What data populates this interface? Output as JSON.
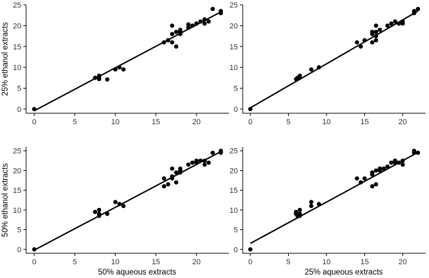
{
  "chart_data": [
    {
      "type": "scatter",
      "xlabel": "",
      "ylabel": "25% ethanol extracts",
      "xlim": [
        -1,
        24
      ],
      "ylim": [
        -1,
        25
      ],
      "xticks": [
        "0",
        "5",
        "10",
        "15",
        "20"
      ],
      "yticks": [
        "0",
        "5",
        "10",
        "15",
        "20",
        "25"
      ],
      "fit": {
        "x": [
          0,
          23
        ],
        "y": [
          -0.4,
          23.3
        ]
      },
      "points": [
        [
          0,
          0
        ],
        [
          7.5,
          7.5
        ],
        [
          8,
          7.7
        ],
        [
          8,
          8
        ],
        [
          8,
          7.2
        ],
        [
          9,
          7.1
        ],
        [
          10,
          9.5
        ],
        [
          10.5,
          10
        ],
        [
          11,
          9.5
        ],
        [
          16,
          16
        ],
        [
          16.5,
          16.5
        ],
        [
          17,
          20
        ],
        [
          17,
          18
        ],
        [
          17,
          16
        ],
        [
          17.5,
          15
        ],
        [
          17.5,
          18.5
        ],
        [
          18,
          19
        ],
        [
          18,
          18
        ],
        [
          18,
          18.5
        ],
        [
          19,
          20.3
        ],
        [
          19,
          19.5
        ],
        [
          19.5,
          20
        ],
        [
          20,
          20.5
        ],
        [
          20,
          20.5
        ],
        [
          20.5,
          21
        ],
        [
          21,
          21.5
        ],
        [
          21,
          20.5
        ],
        [
          21.5,
          21
        ],
        [
          22,
          24
        ],
        [
          23,
          23
        ],
        [
          23,
          23.5
        ]
      ]
    },
    {
      "type": "scatter",
      "xlabel": "",
      "ylabel": "",
      "xlim": [
        -1,
        23
      ],
      "ylim": [
        -1,
        25
      ],
      "xticks": [
        "0",
        "5",
        "10",
        "15",
        "20"
      ],
      "yticks": [
        "0",
        "5",
        "10",
        "15",
        "20",
        "25"
      ],
      "fit": {
        "x": [
          0,
          22
        ],
        "y": [
          0.3,
          23.5
        ]
      },
      "points": [
        [
          0,
          0
        ],
        [
          6,
          7.2
        ],
        [
          6.2,
          7.5
        ],
        [
          6.5,
          8
        ],
        [
          6.5,
          7.5
        ],
        [
          8,
          9.5
        ],
        [
          9,
          10
        ],
        [
          14,
          16
        ],
        [
          14.5,
          15
        ],
        [
          15,
          16.5
        ],
        [
          16,
          16
        ],
        [
          16,
          18
        ],
        [
          16,
          18.5
        ],
        [
          16.5,
          20
        ],
        [
          16.5,
          16.5
        ],
        [
          16.5,
          17.5
        ],
        [
          16.5,
          18.5
        ],
        [
          17,
          19
        ],
        [
          18,
          20
        ],
        [
          18.5,
          20.5
        ],
        [
          19,
          21
        ],
        [
          19.5,
          20.5
        ],
        [
          20,
          21
        ],
        [
          20,
          20.5
        ],
        [
          21.5,
          23
        ],
        [
          21.5,
          23.5
        ],
        [
          22,
          24
        ]
      ]
    },
    {
      "type": "scatter",
      "xlabel": "50% aqueous extracts",
      "ylabel": "50% ethanol extracts",
      "xlim": [
        -1,
        24
      ],
      "ylim": [
        -1,
        26
      ],
      "xticks": [
        "0",
        "5",
        "10",
        "15",
        "20"
      ],
      "yticks": [
        "0",
        "5",
        "10",
        "15",
        "20",
        "25"
      ],
      "fit": {
        "x": [
          0,
          23
        ],
        "y": [
          -0.2,
          24.8
        ]
      },
      "points": [
        [
          0,
          0
        ],
        [
          7.5,
          9.5
        ],
        [
          8,
          9
        ],
        [
          8,
          10
        ],
        [
          8,
          8.5
        ],
        [
          9,
          9
        ],
        [
          10,
          12
        ],
        [
          10.5,
          11.5
        ],
        [
          11,
          11
        ],
        [
          16,
          16
        ],
        [
          16,
          18
        ],
        [
          16.5,
          16.5
        ],
        [
          17,
          20.5
        ],
        [
          17,
          18.5
        ],
        [
          17,
          18
        ],
        [
          17.5,
          19.5
        ],
        [
          17.5,
          17
        ],
        [
          18,
          20.5
        ],
        [
          18,
          20
        ],
        [
          18,
          19.5
        ],
        [
          19,
          21.5
        ],
        [
          19.5,
          22
        ],
        [
          20,
          22.5
        ],
        [
          20,
          22
        ],
        [
          20.5,
          22.5
        ],
        [
          21,
          22.5
        ],
        [
          21,
          21.5
        ],
        [
          21.5,
          22
        ],
        [
          22,
          24.5
        ],
        [
          23,
          24.5
        ],
        [
          23,
          25
        ]
      ]
    },
    {
      "type": "scatter",
      "xlabel": "25% aqueous extracts",
      "ylabel": "",
      "xlim": [
        -1,
        23
      ],
      "ylim": [
        -1,
        26
      ],
      "xticks": [
        "0",
        "5",
        "10",
        "15",
        "20"
      ],
      "yticks": [
        "0",
        "5",
        "10",
        "15",
        "20",
        "25"
      ],
      "fit": {
        "x": [
          0,
          22
        ],
        "y": [
          1.5,
          24.6
        ]
      },
      "points": [
        [
          0,
          0
        ],
        [
          6,
          9
        ],
        [
          6,
          9.5
        ],
        [
          6.2,
          8.5
        ],
        [
          6.5,
          10
        ],
        [
          6.5,
          9
        ],
        [
          6.5,
          8.5
        ],
        [
          8,
          12
        ],
        [
          8,
          11
        ],
        [
          9,
          11.5
        ],
        [
          14,
          18
        ],
        [
          14.5,
          17
        ],
        [
          15,
          18
        ],
        [
          16,
          16
        ],
        [
          16,
          19.5
        ],
        [
          16,
          19
        ],
        [
          16.5,
          20
        ],
        [
          16.5,
          16.5
        ],
        [
          17,
          20.5
        ],
        [
          17,
          20
        ],
        [
          17.5,
          20.5
        ],
        [
          18,
          21
        ],
        [
          18.5,
          22
        ],
        [
          19,
          22
        ],
        [
          19,
          22.5
        ],
        [
          19.5,
          22
        ],
        [
          20,
          22.5
        ],
        [
          20,
          21.5
        ],
        [
          21.5,
          25
        ],
        [
          21.5,
          24.5
        ],
        [
          22,
          24.5
        ]
      ]
    }
  ]
}
